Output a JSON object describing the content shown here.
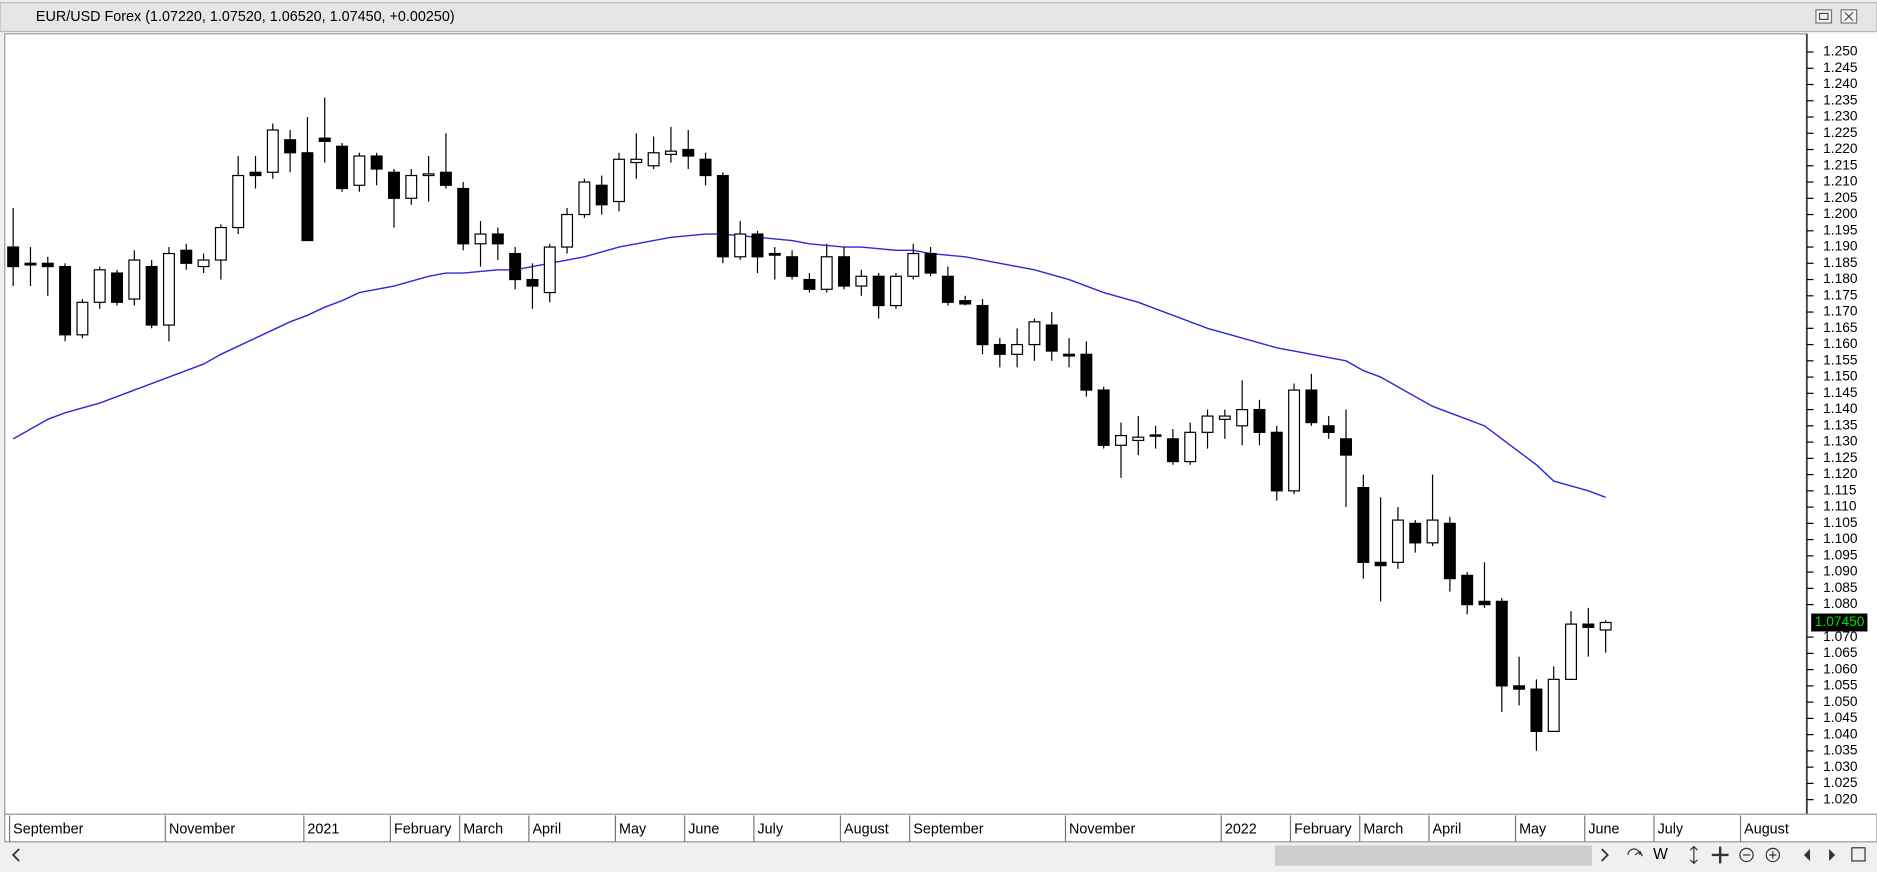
{
  "chart_data": {
    "type": "candlestick",
    "title": "EUR/USD Forex (1.07220, 1.07520, 1.06520, 1.07450, +0.00250)",
    "categories": [
      "September",
      null,
      null,
      null,
      null,
      null,
      null,
      null,
      null,
      "November",
      null,
      null,
      null,
      null,
      null,
      null,
      null,
      "2021",
      null,
      null,
      null,
      null,
      "February",
      null,
      null,
      null,
      "March",
      null,
      null,
      null,
      "April",
      null,
      null,
      null,
      null,
      "May",
      null,
      null,
      null,
      "June",
      null,
      null,
      null,
      "July",
      null,
      null,
      null,
      null,
      "August",
      null,
      null,
      null,
      "September",
      null,
      null,
      null,
      null,
      null,
      null,
      null,
      null,
      "November",
      null,
      null,
      null,
      null,
      null,
      null,
      null,
      null,
      "2022",
      null,
      null,
      null,
      "February",
      null,
      null,
      null,
      "March",
      null,
      null,
      null,
      "April",
      null,
      null,
      null,
      null,
      "May",
      null,
      null,
      null,
      "June",
      null,
      null,
      null,
      "July",
      null,
      null,
      null,
      null,
      "August",
      null,
      null,
      null
    ],
    "open": [
      1.19,
      1.185,
      1.185,
      1.184,
      1.163,
      1.173,
      1.182,
      1.174,
      1.184,
      1.166,
      1.189,
      1.184,
      1.186,
      1.196,
      1.213,
      1.213,
      1.223,
      1.219,
      1.2235,
      1.221,
      1.209,
      1.218,
      1.213,
      1.205,
      1.212,
      1.213,
      1.208,
      1.191,
      1.194,
      1.188,
      1.18,
      1.176,
      1.19,
      1.2,
      1.209,
      1.204,
      1.216,
      1.215,
      1.2185,
      1.22,
      1.217,
      1.212,
      1.187,
      1.194,
      1.188,
      1.187,
      1.18,
      1.177,
      1.187,
      1.178,
      1.181,
      1.172,
      1.181,
      1.188,
      1.181,
      1.1735,
      1.172,
      1.16,
      1.157,
      1.16,
      1.166,
      1.157,
      1.157,
      1.146,
      1.129,
      1.1305,
      1.1322,
      1.131,
      1.124,
      1.133,
      1.137,
      1.135,
      1.14,
      1.133,
      1.115,
      1.146,
      1.135,
      1.131,
      1.116,
      1.093,
      1.093,
      1.105,
      1.099,
      1.105,
      1.089,
      1.081,
      1.081,
      1.055,
      1.054,
      1.041,
      1.057,
      1.074,
      1.0722,
      null,
      null,
      null,
      null,
      null,
      null,
      null,
      null,
      null,
      null,
      null
    ],
    "high": [
      1.202,
      1.19,
      1.187,
      1.185,
      1.174,
      1.184,
      1.183,
      1.189,
      1.186,
      1.19,
      1.191,
      1.188,
      1.197,
      1.218,
      1.218,
      1.228,
      1.226,
      1.23,
      1.236,
      1.222,
      1.219,
      1.219,
      1.214,
      1.214,
      1.218,
      1.225,
      1.21,
      1.198,
      1.196,
      1.19,
      1.185,
      1.191,
      1.202,
      1.211,
      1.212,
      1.219,
      1.225,
      1.224,
      1.227,
      1.226,
      1.219,
      1.213,
      1.198,
      1.195,
      1.19,
      1.189,
      1.182,
      1.191,
      1.19,
      1.183,
      1.182,
      1.182,
      1.191,
      1.19,
      1.184,
      1.175,
      1.174,
      1.162,
      1.165,
      1.168,
      1.17,
      1.162,
      1.161,
      1.147,
      1.136,
      1.138,
      1.135,
      1.134,
      1.136,
      1.14,
      1.14,
      1.149,
      1.143,
      1.135,
      1.148,
      1.151,
      1.138,
      1.14,
      1.12,
      1.113,
      1.11,
      1.106,
      1.12,
      1.107,
      1.09,
      1.093,
      1.082,
      1.064,
      1.057,
      1.061,
      1.078,
      1.079,
      1.0752,
      null,
      null,
      null,
      null,
      null,
      null,
      null,
      null,
      null,
      null,
      null
    ],
    "low": [
      1.178,
      1.178,
      1.175,
      1.161,
      1.162,
      1.171,
      1.172,
      1.172,
      1.165,
      1.161,
      1.183,
      1.182,
      1.18,
      1.194,
      1.208,
      1.211,
      1.213,
      1.192,
      1.216,
      1.207,
      1.207,
      1.209,
      1.196,
      1.203,
      1.204,
      1.208,
      1.189,
      1.184,
      1.186,
      1.177,
      1.171,
      1.173,
      1.188,
      1.199,
      1.2,
      1.201,
      1.211,
      1.214,
      1.216,
      1.214,
      1.209,
      1.185,
      1.186,
      1.182,
      1.18,
      1.18,
      1.176,
      1.176,
      1.177,
      1.175,
      1.168,
      1.171,
      1.18,
      1.181,
      1.172,
      1.172,
      1.157,
      1.153,
      1.153,
      1.155,
      1.155,
      1.153,
      1.144,
      1.128,
      1.119,
      1.126,
      1.128,
      1.123,
      1.123,
      1.128,
      1.131,
      1.129,
      1.129,
      1.112,
      1.114,
      1.135,
      1.131,
      1.11,
      1.088,
      1.081,
      1.091,
      1.096,
      1.098,
      1.084,
      1.077,
      1.079,
      1.047,
      1.049,
      1.035,
      1.041,
      1.057,
      1.064,
      1.0652,
      null,
      null,
      null,
      null,
      null,
      null,
      null,
      null,
      null,
      null,
      null
    ],
    "close": [
      1.184,
      1.1845,
      1.184,
      1.163,
      1.173,
      1.183,
      1.173,
      1.186,
      1.166,
      1.188,
      1.185,
      1.186,
      1.196,
      1.212,
      1.212,
      1.226,
      1.219,
      1.192,
      1.2225,
      1.208,
      1.218,
      1.214,
      1.205,
      1.212,
      1.2125,
      1.209,
      1.191,
      1.194,
      1.191,
      1.18,
      1.178,
      1.19,
      1.2,
      1.21,
      1.203,
      1.217,
      1.217,
      1.219,
      1.2195,
      1.218,
      1.212,
      1.187,
      1.194,
      1.187,
      1.1875,
      1.181,
      1.177,
      1.187,
      1.178,
      1.181,
      1.172,
      1.181,
      1.188,
      1.182,
      1.173,
      1.1725,
      1.16,
      1.157,
      1.16,
      1.167,
      1.158,
      1.1565,
      1.146,
      1.129,
      1.132,
      1.1315,
      1.1318,
      1.124,
      1.133,
      1.138,
      1.138,
      1.14,
      1.133,
      1.115,
      1.146,
      1.136,
      1.133,
      1.126,
      1.093,
      1.092,
      1.106,
      1.099,
      1.106,
      1.088,
      1.08,
      1.08,
      1.055,
      1.054,
      1.041,
      1.057,
      1.074,
      1.073,
      1.0745,
      null,
      null,
      null,
      null,
      null,
      null,
      null,
      null,
      null,
      null,
      null
    ],
    "up_color": "#ffffff",
    "down_color": "#000000",
    "moving_average": {
      "color": "#2b2bd8",
      "values": [
        1.131,
        1.134,
        1.137,
        1.139,
        1.1405,
        1.142,
        1.144,
        1.146,
        1.148,
        1.15,
        1.152,
        1.154,
        1.157,
        1.1595,
        1.162,
        1.1645,
        1.167,
        1.169,
        1.1715,
        1.1735,
        1.176,
        1.177,
        1.178,
        1.1795,
        1.181,
        1.182,
        1.182,
        1.1825,
        1.183,
        1.183,
        1.184,
        1.185,
        1.186,
        1.187,
        1.1885,
        1.19,
        1.191,
        1.192,
        1.193,
        1.1935,
        1.194,
        1.194,
        1.1935,
        1.193,
        1.1925,
        1.192,
        1.191,
        1.1905,
        1.19,
        1.19,
        1.1895,
        1.189,
        1.189,
        1.188,
        1.1875,
        1.187,
        1.186,
        1.185,
        1.184,
        1.183,
        1.1815,
        1.18,
        1.178,
        1.176,
        1.1745,
        1.173,
        1.171,
        1.169,
        1.167,
        1.165,
        1.1635,
        1.162,
        1.1605,
        1.159,
        1.158,
        1.157,
        1.156,
        1.155,
        1.152,
        1.15,
        1.147,
        1.144,
        1.141,
        1.139,
        1.137,
        1.135,
        1.131,
        1.127,
        1.123,
        1.118,
        1.1165,
        1.115,
        1.113,
        null,
        null,
        null,
        null,
        null,
        null,
        null,
        null,
        null,
        null,
        null
      ]
    },
    "ylim": [
      1.0155,
      1.2545
    ],
    "yticks": [
      {
        "value": 1.25,
        "label": "1.250"
      },
      {
        "value": 1.245,
        "label": "1.245"
      },
      {
        "value": 1.24,
        "label": "1.240"
      },
      {
        "value": 1.235,
        "label": "1.235"
      },
      {
        "value": 1.23,
        "label": "1.230"
      },
      {
        "value": 1.225,
        "label": "1.225"
      },
      {
        "value": 1.22,
        "label": "1.220"
      },
      {
        "value": 1.215,
        "label": "1.215"
      },
      {
        "value": 1.21,
        "label": "1.210"
      },
      {
        "value": 1.205,
        "label": "1.205"
      },
      {
        "value": 1.2,
        "label": "1.200"
      },
      {
        "value": 1.195,
        "label": "1.195"
      },
      {
        "value": 1.19,
        "label": "1.190"
      },
      {
        "value": 1.185,
        "label": "1.185"
      },
      {
        "value": 1.18,
        "label": "1.180"
      },
      {
        "value": 1.175,
        "label": "1.175"
      },
      {
        "value": 1.17,
        "label": "1.170"
      },
      {
        "value": 1.165,
        "label": "1.165"
      },
      {
        "value": 1.16,
        "label": "1.160"
      },
      {
        "value": 1.155,
        "label": "1.155"
      },
      {
        "value": 1.15,
        "label": "1.150"
      },
      {
        "value": 1.145,
        "label": "1.145"
      },
      {
        "value": 1.14,
        "label": "1.140"
      },
      {
        "value": 1.135,
        "label": "1.135"
      },
      {
        "value": 1.13,
        "label": "1.130"
      },
      {
        "value": 1.125,
        "label": "1.125"
      },
      {
        "value": 1.12,
        "label": "1.120"
      },
      {
        "value": 1.115,
        "label": "1.115"
      },
      {
        "value": 1.11,
        "label": "1.110"
      },
      {
        "value": 1.105,
        "label": "1.105"
      },
      {
        "value": 1.1,
        "label": "1.100"
      },
      {
        "value": 1.095,
        "label": "1.095"
      },
      {
        "value": 1.09,
        "label": "1.090"
      },
      {
        "value": 1.085,
        "label": "1.085"
      },
      {
        "value": 1.08,
        "label": "1.080"
      },
      {
        "value": 1.07,
        "label": "1.070"
      },
      {
        "value": 1.065,
        "label": "1.065"
      },
      {
        "value": 1.06,
        "label": "1.060"
      },
      {
        "value": 1.055,
        "label": "1.055"
      },
      {
        "value": 1.05,
        "label": "1.050"
      },
      {
        "value": 1.045,
        "label": "1.045"
      },
      {
        "value": 1.04,
        "label": "1.040"
      },
      {
        "value": 1.035,
        "label": "1.035"
      },
      {
        "value": 1.03,
        "label": "1.030"
      },
      {
        "value": 1.025,
        "label": "1.025"
      },
      {
        "value": 1.02,
        "label": "1.020"
      }
    ],
    "last_price": {
      "value": 1.0745,
      "label": "1.07450",
      "color": "#00e000"
    },
    "grid": false
  },
  "toolbar": {
    "period": "W"
  }
}
